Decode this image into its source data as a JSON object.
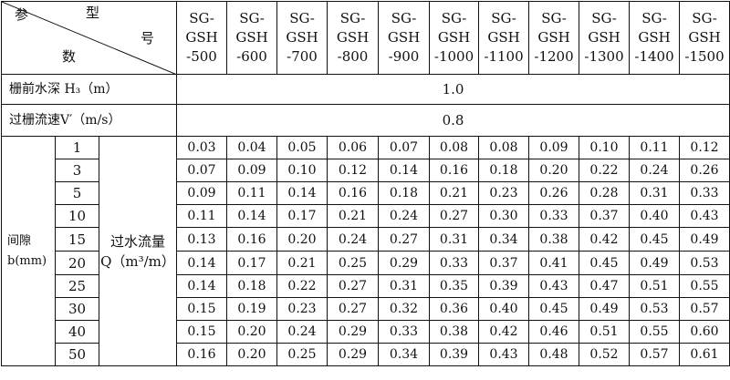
{
  "corner": {
    "can": "参",
    "xing": "型",
    "hao": "号",
    "shu": "数"
  },
  "models": [
    [
      "SG-",
      "GSH",
      "-500"
    ],
    [
      "SG-",
      "GSH",
      "-600"
    ],
    [
      "SG-",
      "GSH",
      "-700"
    ],
    [
      "SG-",
      "GSH",
      "-800"
    ],
    [
      "SG-",
      "GSH",
      "-900"
    ],
    [
      "SG-",
      "GSH",
      "-1000"
    ],
    [
      "SG-",
      "GSH",
      "-1100"
    ],
    [
      "SG-",
      "GSH",
      "-1200"
    ],
    [
      "SG-",
      "GSH",
      "-1300"
    ],
    [
      "SG-",
      "GSH",
      "-1400"
    ],
    [
      "SG-",
      "GSH",
      "-1500"
    ]
  ],
  "depth_row": {
    "label": "栅前水深 H₃（m）",
    "value": "1.0"
  },
  "velocity_row": {
    "label": "过栅流速V′（m/s）",
    "value": "0.8"
  },
  "gap_label": {
    "line1": "间隙",
    "line2": "b(mm)"
  },
  "flow_label": {
    "line1": "过水流量",
    "line2": "Q（m³/m）"
  },
  "rows": [
    {
      "gap": "1",
      "values": [
        "0.03",
        "0.04",
        "0.05",
        "0.06",
        "0.07",
        "0.08",
        "0.08",
        "0.09",
        "0.10",
        "0.11",
        "0.12"
      ]
    },
    {
      "gap": "3",
      "values": [
        "0.07",
        "0.09",
        "0.10",
        "0.12",
        "0.14",
        "0.16",
        "0.18",
        "0.20",
        "0.22",
        "0.24",
        "0.26"
      ]
    },
    {
      "gap": "5",
      "values": [
        "0.09",
        "0.11",
        "0.14",
        "0.16",
        "0.18",
        "0.21",
        "0.23",
        "0.26",
        "0.28",
        "0.31",
        "0.33"
      ]
    },
    {
      "gap": "10",
      "values": [
        "0.11",
        "0.14",
        "0.17",
        "0.21",
        "0.24",
        "0.27",
        "0.30",
        "0.33",
        "0.37",
        "0.40",
        "0.43"
      ]
    },
    {
      "gap": "15",
      "values": [
        "0.13",
        "0.16",
        "0.20",
        "0.24",
        "0.27",
        "0.31",
        "0.34",
        "0.38",
        "0.42",
        "0.45",
        "0.49"
      ]
    },
    {
      "gap": "20",
      "values": [
        "0.14",
        "0.17",
        "0.21",
        "0.25",
        "0.29",
        "0.33",
        "0.37",
        "0.41",
        "0.45",
        "0.49",
        "0.53"
      ]
    },
    {
      "gap": "25",
      "values": [
        "0.14",
        "0.18",
        "0.22",
        "0.27",
        "0.31",
        "0.35",
        "0.39",
        "0.43",
        "0.47",
        "0.51",
        "0.55"
      ]
    },
    {
      "gap": "30",
      "values": [
        "0.15",
        "0.19",
        "0.23",
        "0.27",
        "0.32",
        "0.36",
        "0.40",
        "0.45",
        "0.49",
        "0.53",
        "0.57"
      ]
    },
    {
      "gap": "40",
      "values": [
        "0.15",
        "0.20",
        "0.24",
        "0.29",
        "0.33",
        "0.38",
        "0.42",
        "0.46",
        "0.51",
        "0.55",
        "0.60"
      ]
    },
    {
      "gap": "50",
      "values": [
        "0.16",
        "0.20",
        "0.25",
        "0.29",
        "0.34",
        "0.39",
        "0.43",
        "0.48",
        "0.52",
        "0.57",
        "0.61"
      ]
    }
  ]
}
